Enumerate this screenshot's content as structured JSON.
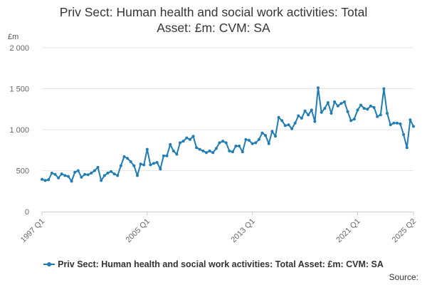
{
  "title": "Priv Sect: Human health and social work activities: Total Asset: £m: CVM: SA",
  "title_lines": [
    "Priv Sect: Human health and social work activities: Total",
    "Asset: £m: CVM: SA"
  ],
  "unit_label": "£m",
  "source_label": "Source:",
  "colors": {
    "line": "#1f7db4",
    "grid": "#e6e6e6",
    "axis": "#cccccc",
    "text": "#666666"
  },
  "chart_data": {
    "type": "line",
    "title": "Priv Sect: Human health and social work activities: Total Asset: £m: CVM: SA",
    "ylabel": "£m",
    "xlabel": "",
    "ylim": [
      0,
      2000
    ],
    "y_ticks": [
      0,
      500,
      1000,
      1500,
      2000
    ],
    "y_tick_labels": [
      "0",
      "500",
      "1 000",
      "1 500",
      "2 000"
    ],
    "x_ticks": [
      "1997 Q1",
      "2005 Q1",
      "2013 Q1",
      "2021 Q1",
      "2025 Q2"
    ],
    "x_start": "1997 Q1",
    "x_end": "2025 Q2",
    "grid": true,
    "legend_position": "bottom",
    "series": [
      {
        "name": "Priv Sect: Human health and social work activities: Total Asset: £m: CVM: SA",
        "values": [
          395,
          380,
          390,
          470,
          455,
          410,
          460,
          440,
          430,
          370,
          480,
          500,
          420,
          455,
          450,
          470,
          500,
          540,
          380,
          440,
          470,
          490,
          460,
          440,
          560,
          670,
          650,
          610,
          560,
          440,
          580,
          570,
          760,
          570,
          590,
          600,
          520,
          680,
          680,
          820,
          740,
          700,
          840,
          860,
          900,
          880,
          920,
          780,
          760,
          740,
          720,
          740,
          720,
          770,
          840,
          860,
          840,
          740,
          730,
          800,
          800,
          730,
          880,
          870,
          830,
          840,
          880,
          960,
          930,
          830,
          980,
          920,
          1150,
          1110,
          1050,
          1060,
          1010,
          1080,
          1170,
          1140,
          1230,
          1180,
          1240,
          1100,
          1510,
          1210,
          1260,
          1330,
          1200,
          1340,
          1290,
          1320,
          1340,
          1220,
          1110,
          1130,
          1240,
          1300,
          1260,
          1250,
          1290,
          1270,
          1160,
          1180,
          1500,
          1200,
          1060,
          1080,
          1080,
          1070,
          940,
          780,
          1120,
          1040
        ]
      }
    ]
  }
}
